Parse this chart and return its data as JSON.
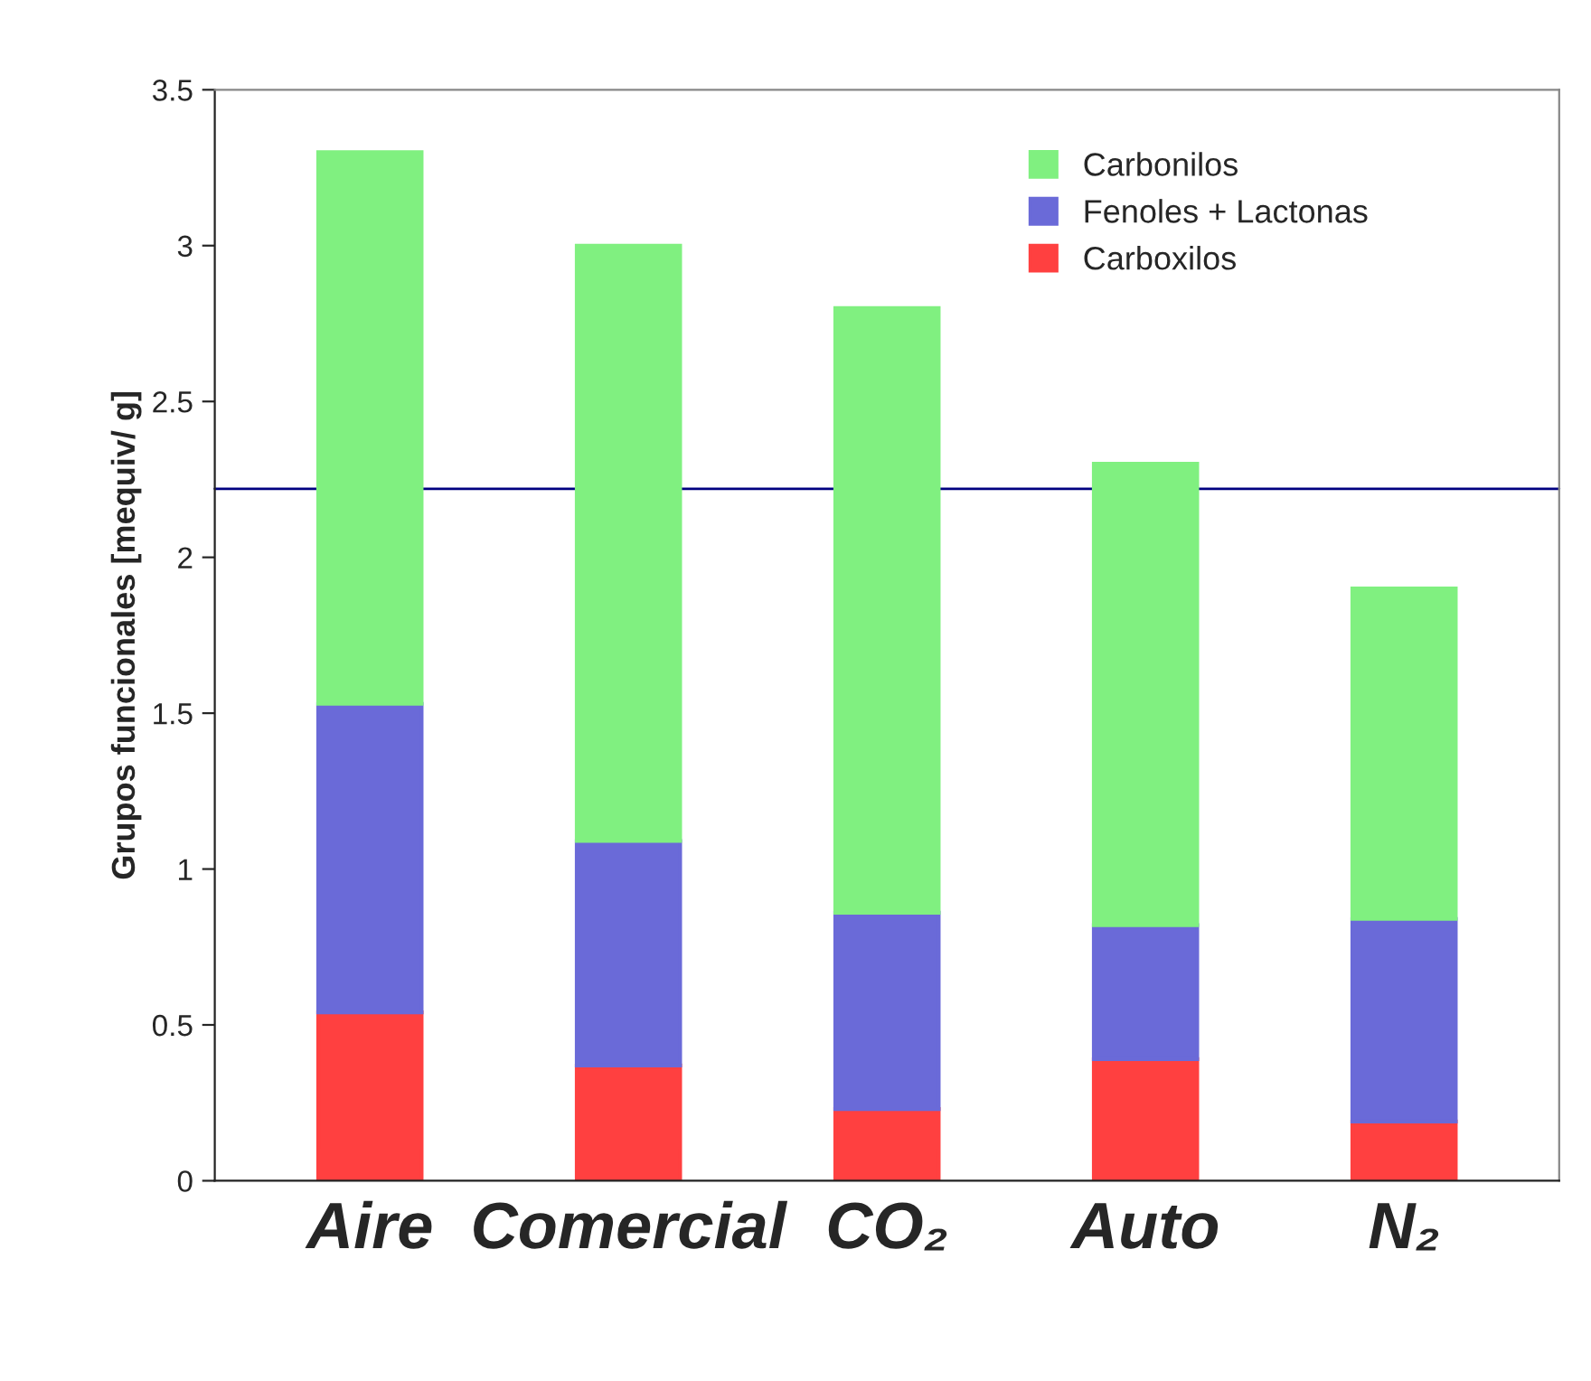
{
  "chart_data": {
    "type": "bar",
    "stacked": true,
    "ylabel": "Grupos funcionales [mequiv/ g]",
    "categories": [
      "Aire",
      "Comercial",
      "CO₂",
      "Auto",
      "N₂"
    ],
    "series": [
      {
        "name": "Carboxilos",
        "color": "#ff4040",
        "values": [
          0.54,
          0.37,
          0.23,
          0.39,
          0.19
        ]
      },
      {
        "name": "Fenoles + Lactonas",
        "color": "#6a6ad8",
        "values": [
          0.99,
          0.72,
          0.63,
          0.43,
          0.65
        ]
      },
      {
        "name": "Carbonilos",
        "color": "#80f080",
        "values": [
          1.77,
          1.91,
          1.94,
          1.48,
          1.06
        ]
      }
    ],
    "ylim": [
      0,
      3.5
    ],
    "yticks": [
      0,
      0.5,
      1,
      1.5,
      2,
      2.5,
      3,
      3.5
    ],
    "ref_lines": [
      {
        "axis": "y",
        "value": 2.22,
        "color": "#000080"
      }
    ],
    "grid": false,
    "legend": "top right"
  }
}
